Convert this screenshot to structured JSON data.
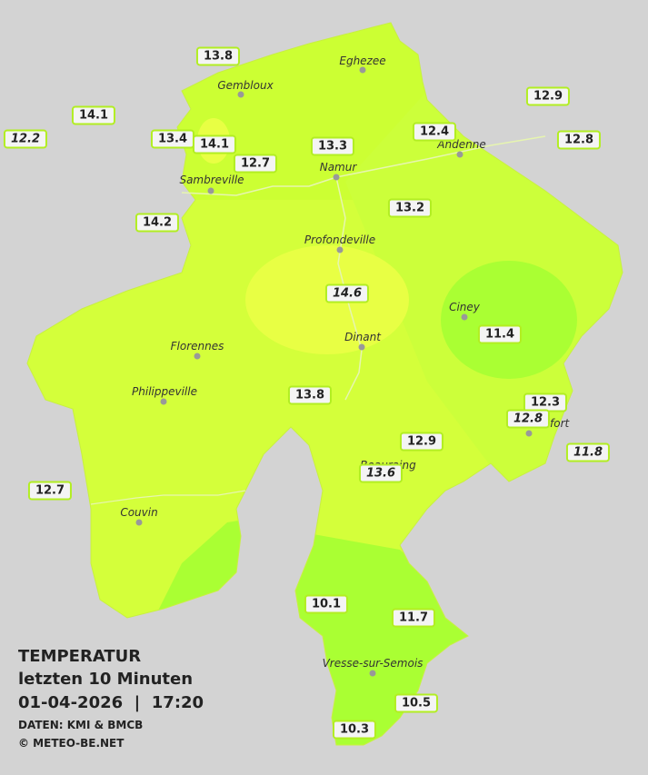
{
  "legend": {
    "title": "TEMPERATUR",
    "period": "letzten 10 Minuten",
    "datetime": "01-04-2026  |  17:20",
    "source": "DATEN: KMI & BMCB",
    "copyright": "© METEO-BE.NET"
  },
  "cities": [
    "Eghezee",
    "Gembloux",
    "Andenne",
    "Namur",
    "Sambreville",
    "Profondeville",
    "Ciney",
    "Dinant",
    "Florennes",
    "Philippeville",
    "Rochefort",
    "Beauraing",
    "Couvin",
    "Vresse-sur-Semois"
  ],
  "stations": [
    13.8,
    14.1,
    12.2,
    13.4,
    14.1,
    12.7,
    13.3,
    12.4,
    12.9,
    12.8,
    13.2,
    14.2,
    14.6,
    11.4,
    13.8,
    12.3,
    12.8,
    12.9,
    11.8,
    13.6,
    12.7,
    10.1,
    11.7,
    10.5,
    10.3
  ]
}
